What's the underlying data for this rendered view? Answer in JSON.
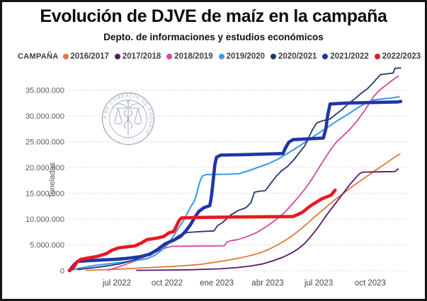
{
  "header": {
    "title": "Evolución de DJVE de maíz en la campaña",
    "subtitle": "Depto. de informaciones y estudios económicos"
  },
  "legend": {
    "label": "CAMPAÑA"
  },
  "watermark": {
    "text": "BOLSA DE COMERCIO DE ROSARIO"
  },
  "chart_data": {
    "type": "line",
    "title": "Evolución de DJVE de maíz en la campaña",
    "subtitle": "Depto. de informaciones y estudios económicos",
    "ylabel": "Toneladas",
    "y_unit_of_points": "million_tonnes",
    "x_unit_of_points": "months_along_axis (0 = plot left ≈ may 2022, 23.75 px/month)",
    "ylim_tonnes": [
      0,
      40000000
    ],
    "grid": "horizontal-dotted",
    "legend_position": "top",
    "yticks": [
      {
        "v": 0,
        "label": "0"
      },
      {
        "v": 5,
        "label": "5.000.000"
      },
      {
        "v": 10,
        "label": "10.000.000"
      },
      {
        "v": 15,
        "label": "15.000.000"
      },
      {
        "v": 20,
        "label": "20.000.000"
      },
      {
        "v": 25,
        "label": "25.000.000"
      },
      {
        "v": 30,
        "label": "30.000.000"
      },
      {
        "v": 35,
        "label": "35.000.000"
      }
    ],
    "xticks": [
      {
        "m": 2.82,
        "label": "jul 2022"
      },
      {
        "m": 5.81,
        "label": "oct 2022"
      },
      {
        "m": 8.76,
        "label": "ene 2023"
      },
      {
        "m": 11.79,
        "label": "abr 2023"
      },
      {
        "m": 14.82,
        "label": "jul 2023"
      },
      {
        "m": 17.89,
        "label": "oct 2023"
      }
    ],
    "series": [
      {
        "name": "2016/2017",
        "color": "#E2793C",
        "stroke_width": 1.8,
        "points": [
          [
            1.0,
            0.05
          ],
          [
            3.0,
            0.3
          ],
          [
            4.5,
            0.55
          ],
          [
            6.0,
            0.8
          ],
          [
            7.0,
            1.0
          ],
          [
            7.8,
            1.2
          ],
          [
            8.5,
            1.55
          ],
          [
            9.2,
            1.9
          ],
          [
            9.9,
            2.3
          ],
          [
            10.6,
            2.8
          ],
          [
            11.2,
            3.3
          ],
          [
            11.7,
            3.9
          ],
          [
            12.1,
            4.5
          ],
          [
            12.5,
            5.2
          ],
          [
            12.9,
            6.0
          ],
          [
            13.3,
            6.9
          ],
          [
            13.7,
            7.9
          ],
          [
            14.1,
            9.0
          ],
          [
            14.5,
            10.2
          ],
          [
            14.9,
            11.3
          ],
          [
            15.3,
            12.4
          ],
          [
            15.7,
            13.5
          ],
          [
            16.1,
            14.5
          ],
          [
            16.5,
            15.5
          ],
          [
            16.9,
            16.5
          ],
          [
            17.3,
            17.4
          ],
          [
            17.7,
            18.3
          ],
          [
            18.1,
            19.2
          ],
          [
            18.5,
            20.1
          ],
          [
            18.9,
            21.0
          ],
          [
            19.3,
            21.9
          ],
          [
            19.65,
            22.6
          ]
        ]
      },
      {
        "name": "2017/2018",
        "color": "#53186B",
        "stroke_width": 1.8,
        "points": [
          [
            4.0,
            0.05
          ],
          [
            7.0,
            0.15
          ],
          [
            9.0,
            0.35
          ],
          [
            10.0,
            0.6
          ],
          [
            10.8,
            0.9
          ],
          [
            11.5,
            1.3
          ],
          [
            12.1,
            1.9
          ],
          [
            12.7,
            2.6
          ],
          [
            13.2,
            3.4
          ],
          [
            13.6,
            4.2
          ],
          [
            14.0,
            5.3
          ],
          [
            14.35,
            6.6
          ],
          [
            14.7,
            8.0
          ],
          [
            15.0,
            9.4
          ],
          [
            15.3,
            10.8
          ],
          [
            15.65,
            12.3
          ],
          [
            16.0,
            13.8
          ],
          [
            16.35,
            15.3
          ],
          [
            16.7,
            16.8
          ],
          [
            17.0,
            17.9
          ],
          [
            17.25,
            18.8
          ],
          [
            17.45,
            19.1
          ],
          [
            18.5,
            19.15
          ],
          [
            19.35,
            19.2
          ],
          [
            19.55,
            19.7
          ]
        ]
      },
      {
        "name": "2018/2019",
        "color": "#D6479E",
        "stroke_width": 1.8,
        "points": [
          [
            2.3,
            0.1
          ],
          [
            2.6,
            0.4
          ],
          [
            3.0,
            0.8
          ],
          [
            3.5,
            1.4
          ],
          [
            4.0,
            2.0
          ],
          [
            4.5,
            2.7
          ],
          [
            5.0,
            3.4
          ],
          [
            5.4,
            4.0
          ],
          [
            5.8,
            4.5
          ],
          [
            6.1,
            4.7
          ],
          [
            7.5,
            4.75
          ],
          [
            9.2,
            4.8
          ],
          [
            9.35,
            5.5
          ],
          [
            9.6,
            5.8
          ],
          [
            10.0,
            6.0
          ],
          [
            10.4,
            6.4
          ],
          [
            10.8,
            6.9
          ],
          [
            11.2,
            7.5
          ],
          [
            11.6,
            8.3
          ],
          [
            12.0,
            9.2
          ],
          [
            12.4,
            10.2
          ],
          [
            12.8,
            11.3
          ],
          [
            13.2,
            12.7
          ],
          [
            13.6,
            14.2
          ],
          [
            14.0,
            15.8
          ],
          [
            14.35,
            17.4
          ],
          [
            14.7,
            19.2
          ],
          [
            15.0,
            20.8
          ],
          [
            15.3,
            22.3
          ],
          [
            15.6,
            23.8
          ],
          [
            15.9,
            25.0
          ],
          [
            16.3,
            26.2
          ],
          [
            16.7,
            27.5
          ],
          [
            17.1,
            29.0
          ],
          [
            17.5,
            30.8
          ],
          [
            17.8,
            32.3
          ],
          [
            18.1,
            33.8
          ],
          [
            18.45,
            35.0
          ],
          [
            18.8,
            35.9
          ],
          [
            19.2,
            36.9
          ],
          [
            19.55,
            37.7
          ]
        ]
      },
      {
        "name": "2019/2020",
        "color": "#3D9BE9",
        "stroke_width": 2.1,
        "points": [
          [
            0,
            0
          ],
          [
            0.6,
            0.5
          ],
          [
            1.5,
            1.0
          ],
          [
            2.8,
            1.5
          ],
          [
            3.8,
            1.9
          ],
          [
            4.6,
            2.3
          ],
          [
            5.1,
            3.0
          ],
          [
            5.5,
            4.0
          ],
          [
            5.9,
            5.3
          ],
          [
            6.2,
            6.8
          ],
          [
            6.5,
            8.3
          ],
          [
            6.8,
            9.8
          ],
          [
            7.0,
            11.0
          ],
          [
            7.2,
            12.3
          ],
          [
            7.45,
            13.6
          ],
          [
            7.6,
            15.3
          ],
          [
            7.75,
            17.2
          ],
          [
            7.9,
            18.3
          ],
          [
            8.1,
            18.6
          ],
          [
            9.5,
            18.7
          ],
          [
            10.1,
            18.8
          ],
          [
            10.6,
            19.3
          ],
          [
            11.2,
            20.0
          ],
          [
            11.8,
            20.7
          ],
          [
            12.4,
            21.6
          ],
          [
            13.0,
            22.8
          ],
          [
            13.6,
            24.0
          ],
          [
            14.2,
            25.3
          ],
          [
            14.8,
            26.6
          ],
          [
            15.4,
            27.9
          ],
          [
            16.0,
            29.2
          ],
          [
            16.6,
            30.4
          ],
          [
            17.2,
            31.7
          ],
          [
            17.7,
            32.6
          ],
          [
            18.1,
            33.1
          ],
          [
            18.6,
            33.3
          ],
          [
            19.2,
            33.5
          ],
          [
            19.6,
            33.7
          ]
        ]
      },
      {
        "name": "2020/2021",
        "color": "#22356E",
        "stroke_width": 1.8,
        "points": [
          [
            0.5,
            0.2
          ],
          [
            2.0,
            0.8
          ],
          [
            3.0,
            1.3
          ],
          [
            4.0,
            2.2
          ],
          [
            5.0,
            3.8
          ],
          [
            5.5,
            4.6
          ],
          [
            6.0,
            5.6
          ],
          [
            6.5,
            6.8
          ],
          [
            7.0,
            7.4
          ],
          [
            8.0,
            7.6
          ],
          [
            8.6,
            7.7
          ],
          [
            8.8,
            8.7
          ],
          [
            9.1,
            9.3
          ],
          [
            9.6,
            10.8
          ],
          [
            10.0,
            11.6
          ],
          [
            10.5,
            12.2
          ],
          [
            10.8,
            13.2
          ],
          [
            11.0,
            15.2
          ],
          [
            11.3,
            15.4
          ],
          [
            11.65,
            15.5
          ],
          [
            11.9,
            16.6
          ],
          [
            12.3,
            18.3
          ],
          [
            12.6,
            19.3
          ],
          [
            13.0,
            20.3
          ],
          [
            13.4,
            21.7
          ],
          [
            13.7,
            23.0
          ],
          [
            14.0,
            24.2
          ],
          [
            14.2,
            25.6
          ],
          [
            14.45,
            27.3
          ],
          [
            14.7,
            28.6
          ],
          [
            15.0,
            29.0
          ],
          [
            15.5,
            29.4
          ],
          [
            15.8,
            30.2
          ],
          [
            16.2,
            31.2
          ],
          [
            16.6,
            32.4
          ],
          [
            17.0,
            33.4
          ],
          [
            17.4,
            34.5
          ],
          [
            17.7,
            35.2
          ],
          [
            18.0,
            36.2
          ],
          [
            18.3,
            37.3
          ],
          [
            18.5,
            38.0
          ],
          [
            19.0,
            38.2
          ],
          [
            19.25,
            38.3
          ],
          [
            19.35,
            39.2
          ],
          [
            19.7,
            39.3
          ]
        ]
      },
      {
        "name": "2021/2022",
        "color": "#2135A8",
        "stroke_width": 4.6,
        "points": [
          [
            0,
            0
          ],
          [
            0.3,
            1.2
          ],
          [
            0.5,
            1.8
          ],
          [
            1.5,
            2.0
          ],
          [
            2.8,
            2.2
          ],
          [
            3.5,
            2.4
          ],
          [
            4.2,
            2.7
          ],
          [
            4.8,
            3.2
          ],
          [
            5.2,
            4.0
          ],
          [
            5.7,
            5.2
          ],
          [
            6.2,
            5.9
          ],
          [
            6.6,
            6.6
          ],
          [
            6.9,
            7.6
          ],
          [
            7.2,
            8.9
          ],
          [
            7.45,
            10.3
          ],
          [
            7.7,
            11.5
          ],
          [
            8.0,
            12.2
          ],
          [
            8.35,
            12.6
          ],
          [
            8.45,
            14.5
          ],
          [
            8.55,
            17.5
          ],
          [
            8.65,
            20.5
          ],
          [
            8.75,
            22.0
          ],
          [
            9.0,
            22.4
          ],
          [
            10.5,
            22.5
          ],
          [
            12.7,
            22.7
          ],
          [
            12.85,
            23.8
          ],
          [
            13.05,
            24.9
          ],
          [
            13.3,
            25.4
          ],
          [
            15.1,
            25.7
          ],
          [
            15.25,
            27.5
          ],
          [
            15.35,
            30.0
          ],
          [
            15.5,
            32.3
          ],
          [
            16.5,
            32.5
          ],
          [
            19.5,
            32.7
          ],
          [
            19.7,
            32.8
          ]
        ]
      },
      {
        "name": "2022/2023",
        "color": "#E8191F",
        "stroke_width": 4.6,
        "points": [
          [
            0,
            0
          ],
          [
            0.25,
            0.6
          ],
          [
            0.45,
            1.7
          ],
          [
            0.7,
            2.2
          ],
          [
            1.2,
            2.5
          ],
          [
            1.7,
            2.8
          ],
          [
            2.2,
            3.3
          ],
          [
            2.5,
            3.9
          ],
          [
            2.9,
            4.4
          ],
          [
            3.4,
            4.6
          ],
          [
            3.9,
            4.8
          ],
          [
            4.3,
            5.4
          ],
          [
            4.6,
            6.0
          ],
          [
            5.2,
            6.3
          ],
          [
            5.6,
            6.6
          ],
          [
            5.9,
            7.3
          ],
          [
            6.2,
            7.6
          ],
          [
            6.35,
            8.5
          ],
          [
            6.5,
            9.6
          ],
          [
            6.65,
            10.2
          ],
          [
            7.5,
            10.3
          ],
          [
            10.0,
            10.4
          ],
          [
            13.3,
            10.5
          ],
          [
            13.6,
            10.9
          ],
          [
            13.9,
            11.4
          ],
          [
            14.15,
            12.1
          ],
          [
            14.4,
            12.7
          ],
          [
            14.7,
            13.3
          ],
          [
            15.0,
            13.9
          ],
          [
            15.3,
            14.3
          ],
          [
            15.55,
            14.6
          ],
          [
            15.7,
            15.2
          ],
          [
            15.8,
            15.6
          ]
        ]
      }
    ]
  }
}
